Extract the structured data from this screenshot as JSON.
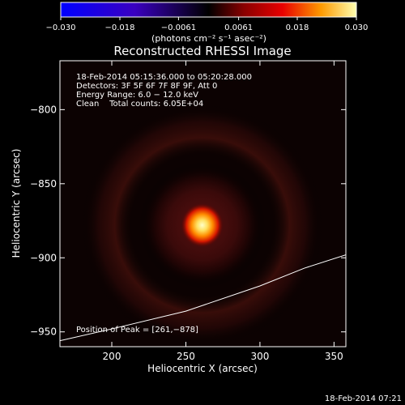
{
  "chart_data": {
    "type": "heatmap",
    "title": "Reconstructed RHESSI Image",
    "xlabel": "Heliocentric X (arcsec)",
    "ylabel": "Heliocentric Y (arcsec)",
    "xlim": [
      165,
      358
    ],
    "ylim": [
      -960,
      -767
    ],
    "xticks": [
      200,
      250,
      300,
      350
    ],
    "yticks": [
      -800,
      -850,
      -900,
      -950
    ],
    "colorbar": {
      "range": [
        -0.03,
        0.03
      ],
      "tick_values": [
        -0.03,
        -0.018,
        -0.0061,
        0.0061,
        0.018,
        0.03
      ],
      "tick_labels": [
        "−0.030",
        "−0.018",
        "−0.0061",
        "0.0061",
        "0.018",
        "0.030"
      ],
      "unit": "(photons cm⁻² s⁻¹ asec⁻²)"
    },
    "peak": {
      "x": 261,
      "y": -878
    },
    "limb": [
      [
        165,
        -956
      ],
      [
        200,
        -948
      ],
      [
        250,
        -936
      ],
      [
        300,
        -919
      ],
      [
        330,
        -907
      ],
      [
        358,
        -898
      ]
    ],
    "annotations": {
      "time_range": "18-Feb-2014 05:15:36.000 to 05:20:28.000",
      "detectors": "Detectors: 3F 5F 6F 7F 8F 9F, Att 0",
      "energy": "Energy Range: 6.0 − 12.0 keV",
      "clean": "Clean    Total counts: 6.05E+04",
      "peak_label": "Position of Peak = [261,−878]"
    },
    "footer": "18-Feb-2014 07:21"
  }
}
